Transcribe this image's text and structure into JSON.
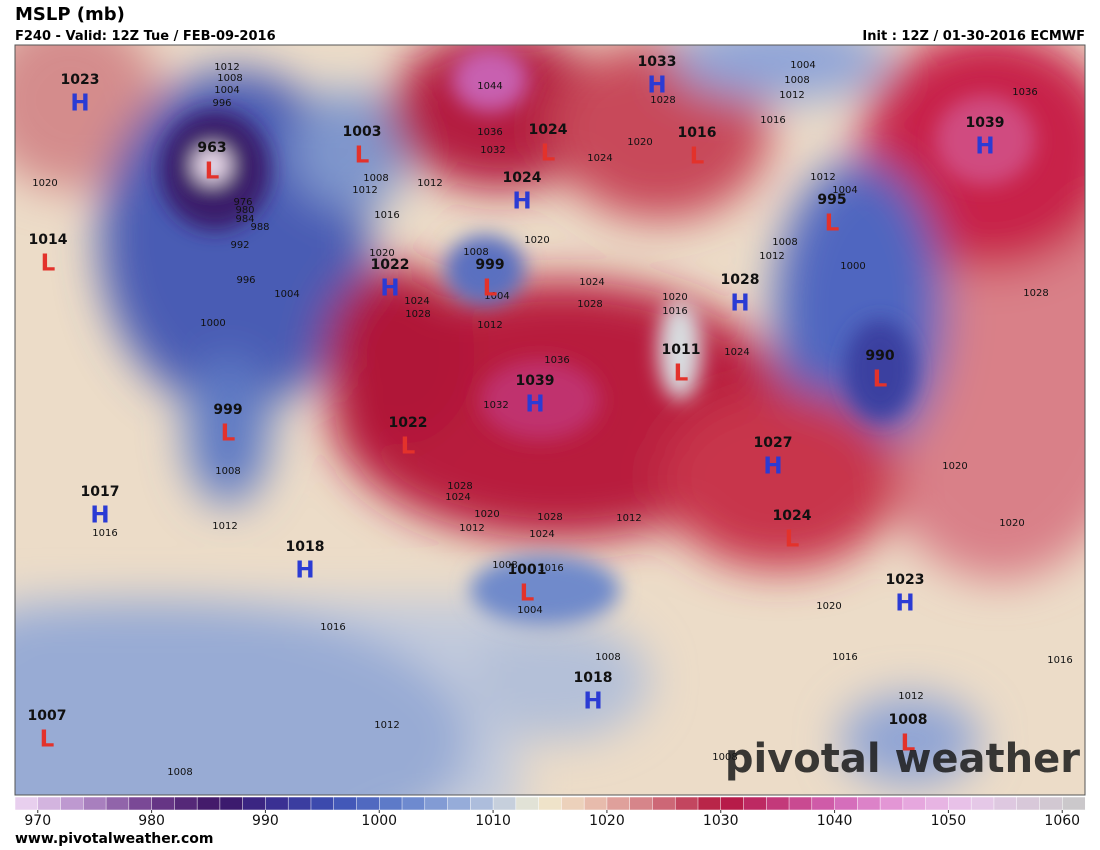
{
  "header": {
    "title": "MSLP (mb)",
    "valid": "F240 - Valid: 12Z Tue / FEB-09-2016",
    "init": "Init : 12Z / 01-30-2016 ECMWF"
  },
  "centers": [
    {
      "value": 1023,
      "type": "H",
      "color": "#2b3bd4"
    },
    {
      "value": 963,
      "type": "L",
      "color": "#e3322b"
    },
    {
      "value": 1003,
      "type": "L",
      "color": "#e3322b"
    },
    {
      "value": 1033,
      "type": "H",
      "color": "#2b3bd4"
    },
    {
      "value": 1024,
      "type": "L",
      "color": "#e3322b"
    },
    {
      "value": 1016,
      "type": "L",
      "color": "#e3322b"
    },
    {
      "value": 1039,
      "type": "H",
      "color": "#2b3bd4"
    },
    {
      "value": 1024,
      "type": "H",
      "color": "#2b3bd4"
    },
    {
      "value": 995,
      "type": "L",
      "color": "#e3322b"
    },
    {
      "value": 1014,
      "type": "L",
      "color": "#e3322b"
    },
    {
      "value": 1022,
      "type": "H",
      "color": "#2b3bd4"
    },
    {
      "value": 999,
      "type": "L",
      "color": "#e3322b"
    },
    {
      "value": 1028,
      "type": "H",
      "color": "#2b3bd4"
    },
    {
      "value": 1011,
      "type": "L",
      "color": "#e3322b"
    },
    {
      "value": 990,
      "type": "L",
      "color": "#e3322b"
    },
    {
      "value": 1039,
      "type": "H",
      "color": "#2b3bd4"
    },
    {
      "value": 999,
      "type": "L",
      "color": "#e3322b"
    },
    {
      "value": 1022,
      "type": "L",
      "color": "#e3322b"
    },
    {
      "value": 1027,
      "type": "H",
      "color": "#2b3bd4"
    },
    {
      "value": 1017,
      "type": "H",
      "color": "#2b3bd4"
    },
    {
      "value": 1024,
      "type": "L",
      "color": "#e3322b"
    },
    {
      "value": 1018,
      "type": "H",
      "color": "#2b3bd4"
    },
    {
      "value": 1001,
      "type": "L",
      "color": "#e3322b"
    },
    {
      "value": 1023,
      "type": "H",
      "color": "#2b3bd4"
    },
    {
      "value": 1018,
      "type": "H",
      "color": "#2b3bd4"
    },
    {
      "value": 1007,
      "type": "L",
      "color": "#e3322b"
    },
    {
      "value": 1008,
      "type": "L",
      "color": "#e3322b"
    }
  ],
  "isobar_labels": [
    1012,
    1008,
    1004,
    996,
    976,
    980,
    984,
    988,
    992,
    996,
    1004,
    1000,
    1020,
    1008,
    1012,
    1012,
    1016,
    1020,
    1024,
    1028,
    1008,
    1004,
    1012,
    1044,
    1036,
    1032,
    1020,
    1024,
    1028,
    1036,
    1032,
    1024,
    1020,
    1028,
    1004,
    1008,
    1012,
    1016,
    1012,
    1004,
    1008,
    1012,
    1000,
    1020,
    1016,
    1024,
    1036,
    1028,
    1020,
    1020,
    1008,
    1012,
    1016,
    1016,
    1012,
    1008,
    1028,
    1024,
    1020,
    1012,
    1028,
    1024,
    1016,
    1008,
    1004,
    1012,
    1008,
    1020,
    1016,
    1016,
    1012,
    1008
  ],
  "colorbar": {
    "range": [
      968,
      1062
    ],
    "step": 2,
    "ticks": [
      970,
      980,
      990,
      1000,
      1010,
      1020,
      1030,
      1040,
      1050,
      1060
    ],
    "stops": [
      {
        "value": 968,
        "color": "#f2dcf5"
      },
      {
        "value": 974,
        "color": "#b48cc8"
      },
      {
        "value": 980,
        "color": "#6e3c8c"
      },
      {
        "value": 986,
        "color": "#3c1464"
      },
      {
        "value": 990,
        "color": "#3a2a8c"
      },
      {
        "value": 996,
        "color": "#3c50b4"
      },
      {
        "value": 1002,
        "color": "#6482cc"
      },
      {
        "value": 1008,
        "color": "#a0b4dc"
      },
      {
        "value": 1012,
        "color": "#d2d8dc"
      },
      {
        "value": 1014,
        "color": "#f0ecd0"
      },
      {
        "value": 1018,
        "color": "#ebc8b4"
      },
      {
        "value": 1024,
        "color": "#d27882"
      },
      {
        "value": 1030,
        "color": "#b4143c"
      },
      {
        "value": 1034,
        "color": "#c0306e"
      },
      {
        "value": 1040,
        "color": "#d264b4"
      },
      {
        "value": 1046,
        "color": "#e6a0dc"
      },
      {
        "value": 1052,
        "color": "#e8c8ea"
      },
      {
        "value": 1062,
        "color": "#c8c8c8"
      }
    ]
  },
  "footer": {
    "url": "www.pivotalweather.com",
    "watermark": "pivotal weather"
  }
}
